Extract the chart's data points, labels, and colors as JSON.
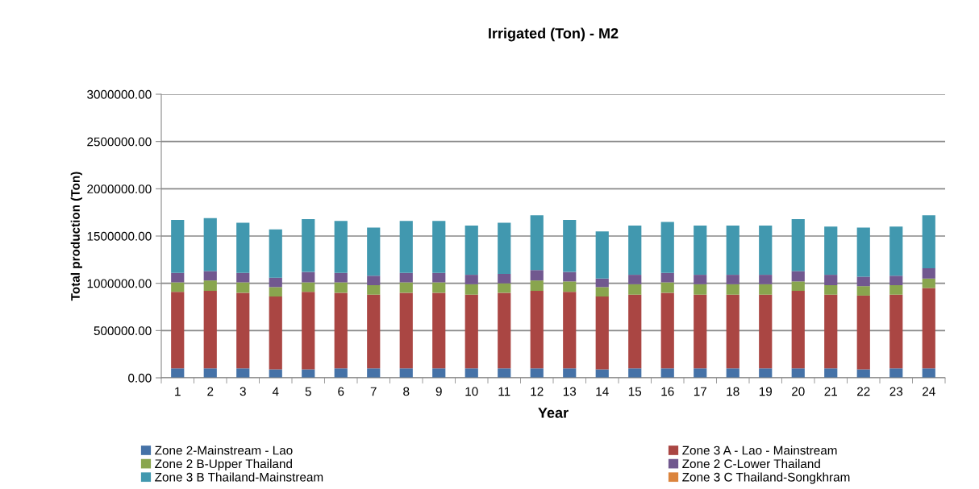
{
  "chart_data": {
    "type": "bar",
    "stacked": true,
    "title": "Irrigated (Ton) - M2",
    "xlabel": "Year",
    "ylabel": "Total production (Ton)",
    "categories": [
      "1",
      "2",
      "3",
      "4",
      "5",
      "6",
      "7",
      "8",
      "9",
      "10",
      "11",
      "12",
      "13",
      "14",
      "15",
      "16",
      "17",
      "18",
      "19",
      "20",
      "21",
      "22",
      "23",
      "24"
    ],
    "ylim": [
      0,
      3000000
    ],
    "yticks": [
      {
        "value": 0,
        "label": "0.00"
      },
      {
        "value": 500000,
        "label": "500000.00"
      },
      {
        "value": 1000000,
        "label": "1000000.00"
      },
      {
        "value": 1500000,
        "label": "1500000.00"
      },
      {
        "value": 2000000,
        "label": "2000000.00"
      },
      {
        "value": 2500000,
        "label": "2500000.00"
      },
      {
        "value": 3000000,
        "label": "3000000.00"
      }
    ],
    "grid": "y",
    "legend": "bottom",
    "series": [
      {
        "name": "Zone 2-Mainstream - Lao",
        "color": "#4572a7",
        "values": [
          100000,
          100000,
          100000,
          90000,
          90000,
          100000,
          100000,
          100000,
          100000,
          100000,
          100000,
          100000,
          100000,
          90000,
          100000,
          100000,
          100000,
          100000,
          100000,
          100000,
          100000,
          90000,
          100000,
          100000
        ]
      },
      {
        "name": "Zone 3 A - Lao - Mainstream",
        "color": "#aa4643",
        "values": [
          810000,
          820000,
          800000,
          770000,
          820000,
          800000,
          780000,
          800000,
          800000,
          780000,
          800000,
          820000,
          810000,
          770000,
          780000,
          800000,
          780000,
          780000,
          780000,
          820000,
          780000,
          780000,
          780000,
          850000
        ]
      },
      {
        "name": "Zone 2 B-Upper Thailand",
        "color": "#89a54e",
        "values": [
          100000,
          110000,
          110000,
          100000,
          100000,
          110000,
          100000,
          110000,
          110000,
          110000,
          100000,
          110000,
          110000,
          100000,
          110000,
          110000,
          110000,
          110000,
          110000,
          100000,
          100000,
          100000,
          100000,
          100000
        ]
      },
      {
        "name": "Zone 2 C-Lower Thailand",
        "color": "#71588f",
        "values": [
          100000,
          100000,
          100000,
          100000,
          110000,
          100000,
          100000,
          100000,
          100000,
          100000,
          100000,
          110000,
          100000,
          90000,
          100000,
          100000,
          100000,
          100000,
          100000,
          110000,
          110000,
          100000,
          100000,
          110000
        ]
      },
      {
        "name": "Zone 3 B Thailand-Mainstream",
        "color": "#4198af",
        "values": [
          560000,
          560000,
          530000,
          510000,
          560000,
          550000,
          510000,
          550000,
          550000,
          520000,
          540000,
          580000,
          550000,
          500000,
          520000,
          540000,
          520000,
          520000,
          520000,
          550000,
          510000,
          520000,
          520000,
          560000
        ]
      },
      {
        "name": "Zone 3 C Thailand-Songkhram",
        "color": "#db843d",
        "values": [
          0,
          0,
          0,
          0,
          0,
          0,
          0,
          0,
          0,
          0,
          0,
          0,
          0,
          0,
          0,
          0,
          0,
          0,
          0,
          0,
          0,
          0,
          0,
          0
        ]
      }
    ]
  }
}
